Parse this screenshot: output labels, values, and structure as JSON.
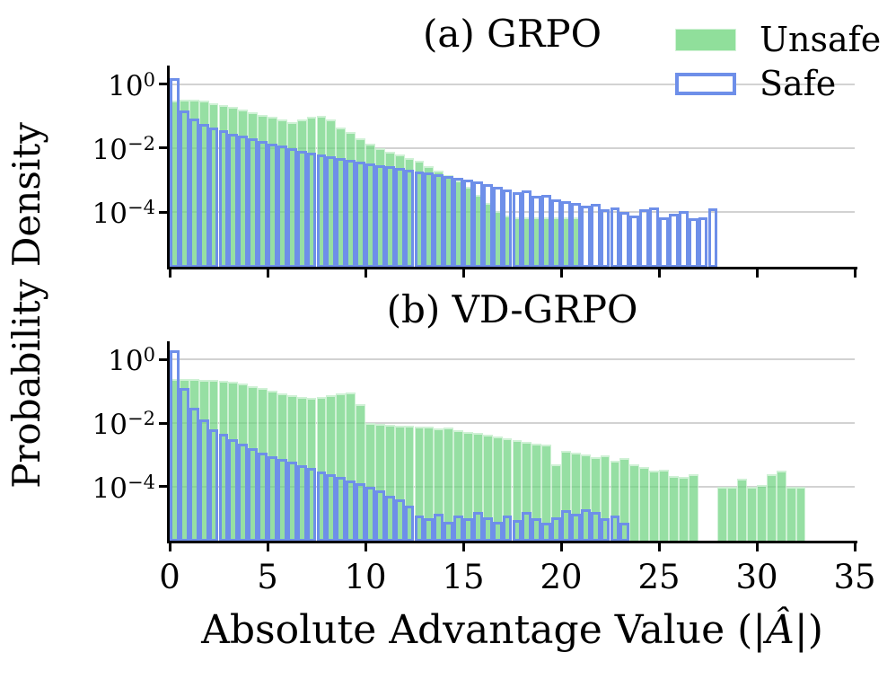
{
  "figure": {
    "ylabel": "Probability Density",
    "xlabel": "Absolute Advantage Value (|Â|)",
    "xlabel_parts": {
      "prefix": "Absolute Advantage Value (|",
      "variable": "Â",
      "suffix": "|)"
    },
    "legend": {
      "items": [
        {
          "label": "Unsafe",
          "style": "filled",
          "color": "#90df9b"
        },
        {
          "label": "Safe",
          "style": "outlined",
          "color": "#6e8fe9"
        }
      ]
    },
    "colors": {
      "unsafe_fill": "#90df9b",
      "safe_edge": "#6e8fe9",
      "gridline": "#d2d2d2",
      "axis": "#000000"
    }
  },
  "chart_data": [
    {
      "type": "bar",
      "subtype": "histogram",
      "title": "(a) GRPO",
      "bin_width": 0.5,
      "bin_start": 0,
      "grid": "horizontal",
      "x_axis": {
        "min": 0,
        "max": 35,
        "ticks": [
          0,
          5,
          10,
          15,
          20,
          25,
          30,
          35
        ]
      },
      "y_axis": {
        "scale": "log",
        "tick_labels": [
          {
            "base": "10",
            "exponent": "0",
            "value": 1
          },
          {
            "base": "10",
            "exponent": "−2",
            "value": 0.01
          },
          {
            "base": "10",
            "exponent": "−4",
            "value": 0.0001
          }
        ]
      },
      "series": [
        {
          "name": "Unsafe",
          "style": "filled",
          "color": "#90df9b",
          "values": [
            0.3,
            0.32,
            0.33,
            0.3,
            0.25,
            0.22,
            0.19,
            0.16,
            0.13,
            0.112,
            0.093,
            0.079,
            0.066,
            0.079,
            0.095,
            0.105,
            0.079,
            0.045,
            0.032,
            0.02,
            0.014,
            0.01,
            0.0079,
            0.0063,
            0.005,
            0.004,
            0.0028,
            0.002,
            0.0014,
            0.001,
            0.00063,
            0.00035,
            0.0002,
            0.00011,
            7.9e-05,
            7.1e-05,
            7.1e-05,
            7.1e-05,
            7.1e-05,
            7.1e-05,
            7.1e-05,
            7.1e-05
          ]
        },
        {
          "name": "Safe",
          "style": "outlined",
          "color": "#6e8fe9",
          "values": [
            1.5,
            0.155,
            0.085,
            0.058,
            0.044,
            0.036,
            0.029,
            0.024,
            0.02,
            0.0168,
            0.0142,
            0.012,
            0.01,
            0.0085,
            0.0074,
            0.0065,
            0.0056,
            0.0049,
            0.0043,
            0.0038,
            0.0034,
            0.003,
            0.0027,
            0.0024,
            0.0021,
            0.0019,
            0.0017,
            0.0015,
            0.00135,
            0.0012,
            0.00107,
            0.0009,
            0.00074,
            0.00063,
            0.00052,
            0.00042,
            0.00047,
            0.00032,
            0.00035,
            0.00025,
            0.00022,
            0.00019,
            0.00016,
            0.00018,
            0.000126,
            0.00014,
            0.0001,
            7.9e-05,
            0.00012,
            0.00014,
            7.1e-05,
            8.9e-05,
            0.00011,
            6.3e-05,
            7.1e-05,
            0.000135
          ]
        }
      ]
    },
    {
      "type": "bar",
      "subtype": "histogram",
      "title": "(b) VD-GRPO",
      "bin_width": 0.5,
      "bin_start": 0,
      "grid": "horizontal",
      "x_axis": {
        "min": 0,
        "max": 35,
        "ticks": [
          0,
          5,
          10,
          15,
          20,
          25,
          30,
          35
        ]
      },
      "y_axis": {
        "scale": "log",
        "tick_labels": [
          {
            "base": "10",
            "exponent": "0",
            "value": 1
          },
          {
            "base": "10",
            "exponent": "−2",
            "value": 0.01
          },
          {
            "base": "10",
            "exponent": "−4",
            "value": 0.0001
          }
        ]
      },
      "series": [
        {
          "name": "Unsafe",
          "style": "filled",
          "color": "#90df9b",
          "values": [
            0.24,
            0.25,
            0.24,
            0.23,
            0.235,
            0.22,
            0.2,
            0.178,
            0.151,
            0.126,
            0.107,
            0.089,
            0.076,
            0.068,
            0.063,
            0.066,
            0.076,
            0.087,
            0.095,
            0.04,
            0.01,
            0.0095,
            0.0089,
            0.0083,
            0.0083,
            0.0076,
            0.0076,
            0.0068,
            0.0071,
            0.006,
            0.0052,
            0.0048,
            0.0042,
            0.0038,
            0.0033,
            0.003,
            0.0026,
            0.0023,
            0.0021,
            0.0005,
            0.0013,
            0.0012,
            0.00105,
            0.00083,
            0.00095,
            0.00066,
            0.00079,
            0.0005,
            0.00042,
            0.00032,
            0.00035,
            0.00022,
            0.0002,
            0.00025,
            0,
            0,
            0.0001,
            0.0001,
            0.00018,
            0.0001,
            0.00011,
            0.00024,
            0.00032,
            0.0001,
            0.0001
          ]
        },
        {
          "name": "Safe",
          "style": "outlined",
          "color": "#6e8fe9",
          "values": [
            2.0,
            0.132,
            0.03,
            0.0135,
            0.0066,
            0.0045,
            0.0032,
            0.0022,
            0.0016,
            0.0012,
            0.00093,
            0.00074,
            0.0006,
            0.00048,
            0.00038,
            0.0003,
            0.00025,
            0.0002,
            0.00016,
            0.000126,
            0.0001,
            7.6e-05,
            5.2e-05,
            4e-05,
            2.5e-05,
            1.26e-05,
            1e-05,
            1.4e-05,
            7.9e-06,
            1.26e-05,
            1e-05,
            1.6e-05,
            1.1e-05,
            7.9e-06,
            1.26e-05,
            8.9e-06,
            1.6e-05,
            1e-05,
            7.1e-06,
            1.1e-05,
            1.8e-05,
            1.4e-05,
            2e-05,
            1.6e-05,
            1e-05,
            1.26e-05,
            7.1e-06
          ]
        }
      ]
    }
  ]
}
